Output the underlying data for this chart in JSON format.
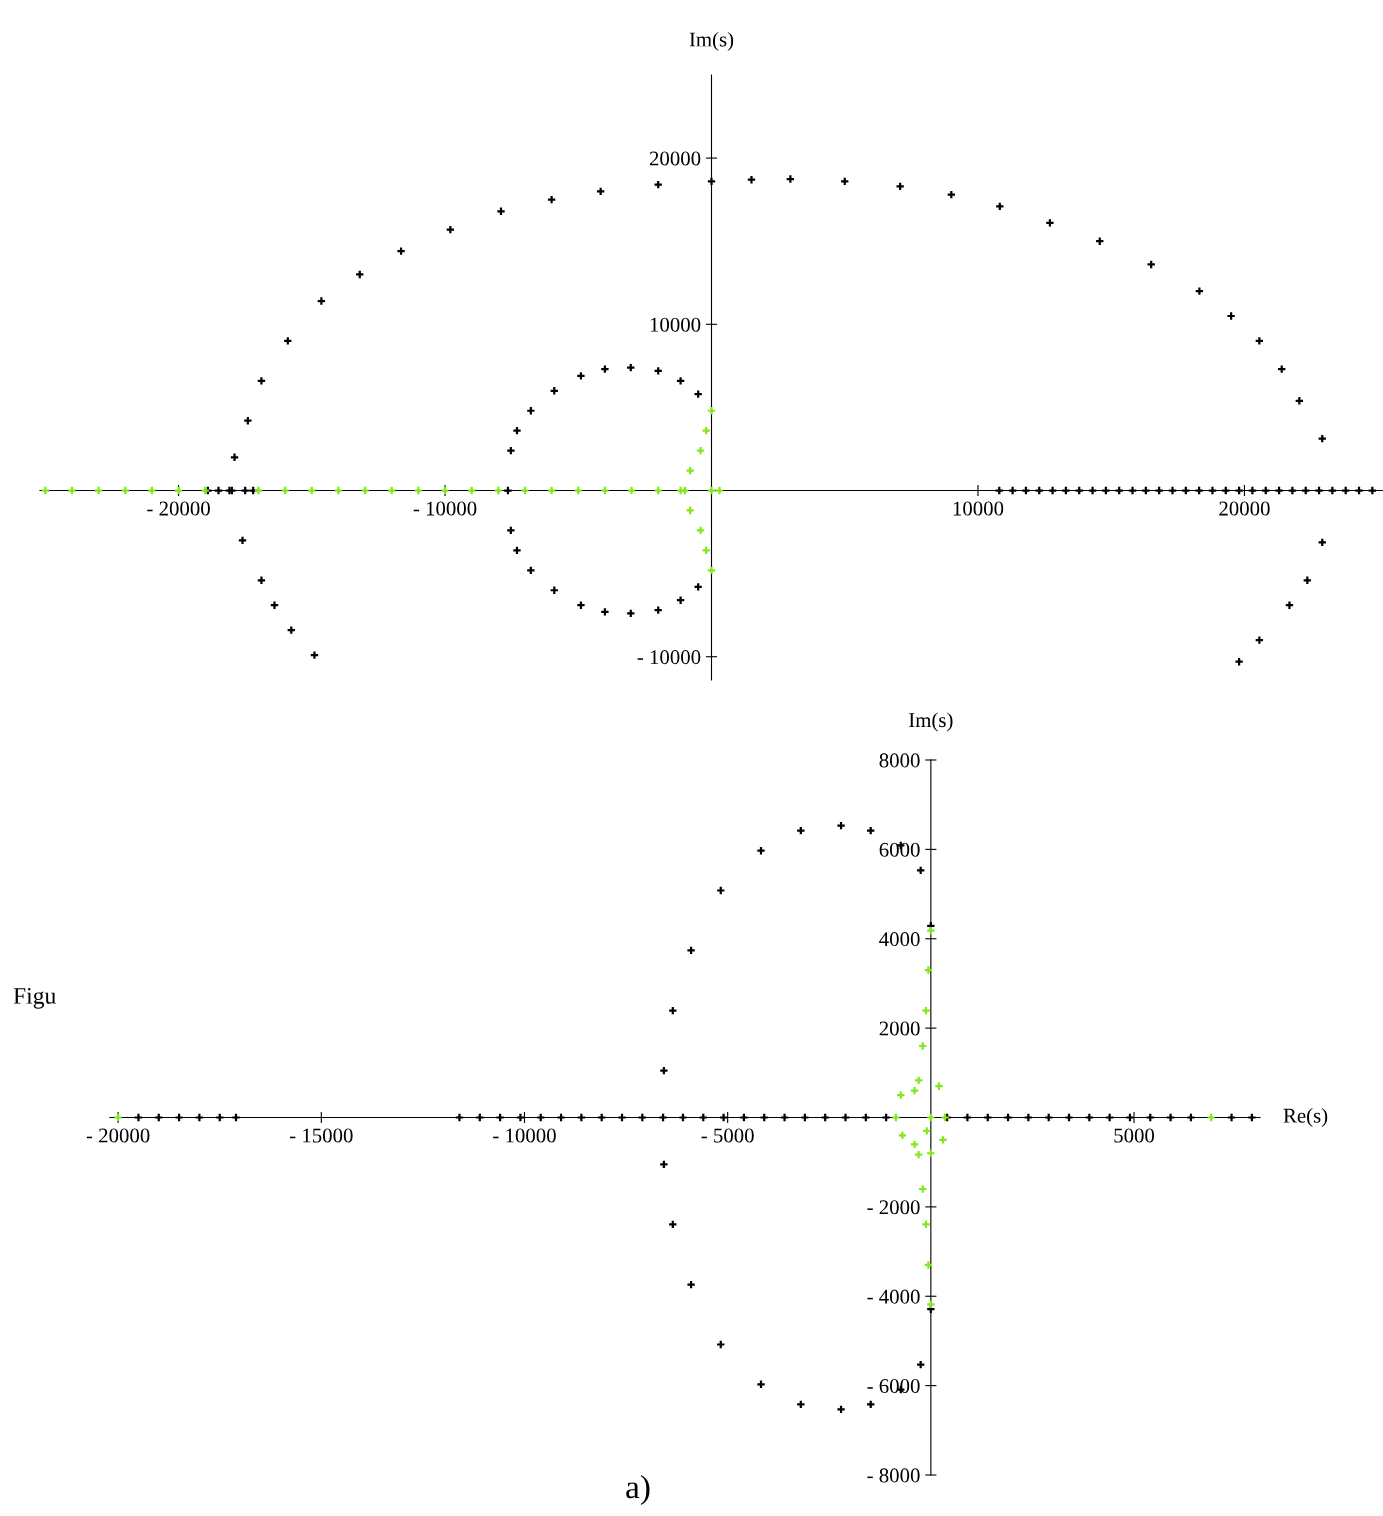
{
  "chart_data": [
    {
      "type": "scatter",
      "ylabel": "Im(s)",
      "xlim": [
        -25200,
        25200
      ],
      "ylim": [
        -11400,
        25000
      ],
      "xticks": [
        {
          "value": -20000,
          "label": "- 20000"
        },
        {
          "value": -10000,
          "label": "- 10000"
        },
        10000,
        20000
      ],
      "yticks": [
        20000,
        10000,
        {
          "value": -10000,
          "label": "- 10000"
        }
      ],
      "grid": false,
      "marker": "cross",
      "series": [
        {
          "color": "#000000",
          "x": [
            -14900,
            -15770,
            -16400,
            -16890,
            -17600,
            -18090,
            -17900,
            -17400,
            -16890,
            -15900,
            -14640,
            -13200,
            -11650,
            -9800,
            -7900,
            -6000,
            -4160,
            -2000,
            0,
            1500,
            2960,
            5000,
            7080,
            9000,
            10820,
            12700,
            14570,
            16500,
            18310,
            19500,
            20560,
            21400,
            22060,
            22920,
            22920,
            22360,
            21690,
            20560,
            19800
          ],
          "values": [
            -9900,
            -8400,
            -6900,
            -5400,
            -3000,
            0,
            2000,
            4200,
            6600,
            9000,
            11400,
            13000,
            14400,
            15700,
            16800,
            17500,
            18000,
            18400,
            18600,
            18700,
            18740,
            18600,
            18300,
            17800,
            17100,
            16100,
            15000,
            13600,
            12000,
            10500,
            9000,
            7300,
            5400,
            3120,
            -3120,
            -5400,
            -6900,
            -9000,
            -10300
          ]
        },
        {
          "color": "#000000",
          "x": [
            -500,
            -1160,
            -2000,
            -3030,
            -4000,
            -4900,
            -5900,
            -6780,
            -7300,
            -7530,
            -7640,
            -7530,
            -7300,
            -6780,
            -5900,
            -4900,
            -4000,
            -3030,
            -2000,
            -1160,
            -500
          ],
          "values": [
            5800,
            6600,
            7200,
            7390,
            7300,
            6900,
            6000,
            4800,
            3600,
            2400,
            0,
            -2400,
            -3600,
            -4800,
            -6000,
            -6900,
            -7300,
            -7390,
            -7200,
            -6600,
            -5800
          ]
        },
        {
          "color": "#000000",
          "x": [
            -18900,
            -18500,
            -18000,
            -17500,
            -17200,
            10800,
            11300,
            11800,
            12300,
            12800,
            13300,
            13800,
            14300,
            14800,
            15300,
            15800,
            16300,
            16800,
            17300,
            17800,
            18300,
            18800,
            19300,
            19800,
            20300,
            20800,
            21300,
            21800,
            22300,
            22800,
            23300,
            23800,
            24300,
            24800
          ],
          "values": [
            0,
            0,
            0,
            0,
            0,
            0,
            0,
            0,
            0,
            0,
            0,
            0,
            0,
            0,
            0,
            0,
            0,
            0,
            0,
            0,
            0,
            0,
            0,
            0,
            0,
            0,
            0,
            0,
            0,
            0,
            0,
            0,
            0,
            0
          ]
        },
        {
          "color": "#84e61c",
          "x": [
            -25000,
            -24000,
            -23000,
            -22000,
            -21000,
            -20000,
            -19000,
            -17000,
            -16000,
            -15000,
            -14000,
            -13000,
            -12000,
            -11000,
            -10000,
            -9000,
            -8000,
            -7000,
            -6000,
            -5000,
            -4000,
            -3000,
            -2000,
            -1000,
            0,
            300
          ],
          "values": [
            0,
            0,
            0,
            0,
            0,
            0,
            0,
            0,
            0,
            0,
            0,
            0,
            0,
            0,
            0,
            0,
            0,
            0,
            0,
            0,
            0,
            0,
            0,
            0,
            0,
            0
          ]
        },
        {
          "color": "#84e61c",
          "x": [
            0,
            -200,
            -410,
            -800,
            -1160,
            -800,
            -410,
            -200,
            0
          ],
          "values": [
            4800,
            3600,
            2400,
            1200,
            0,
            -1200,
            -2400,
            -3600,
            -4800
          ]
        }
      ]
    },
    {
      "type": "scatter",
      "ylabel": "Im(s)",
      "xlabel": "Re(s)",
      "xlim": [
        -20200,
        8100
      ],
      "ylim": [
        -8000,
        8000
      ],
      "xticks": [
        {
          "value": -20000,
          "label": "- 20000"
        },
        {
          "value": -15000,
          "label": "- 15000"
        },
        {
          "value": -10000,
          "label": "- 10000"
        },
        {
          "value": -5000,
          "label": "- 5000"
        },
        5000
      ],
      "yticks": [
        8000,
        6000,
        4000,
        2000,
        {
          "value": -2000,
          "label": "- 2000"
        },
        {
          "value": -4000,
          "label": "- 4000"
        },
        {
          "value": -6000,
          "label": "- 6000"
        },
        {
          "value": -8000,
          "label": "- 8000"
        }
      ],
      "grid": false,
      "marker": "cross",
      "annotations": [
        "Figu",
        "a)"
      ],
      "series": [
        {
          "color": "#000000",
          "x": [
            0,
            -250,
            -740,
            -1480,
            -2210,
            -3200,
            -4180,
            -5170,
            -5900,
            -6350,
            -6570,
            -6590,
            -6570,
            -6350,
            -5900,
            -5170,
            -4180,
            -3200,
            -2210,
            -1480,
            -740,
            -250,
            0
          ],
          "values": [
            4290,
            5530,
            6090,
            6420,
            6530,
            6420,
            5970,
            5080,
            3740,
            2390,
            1050,
            0,
            -1050,
            -2390,
            -3740,
            -5080,
            -5970,
            -6420,
            -6530,
            -6420,
            -6090,
            -5530,
            -4290
          ]
        },
        {
          "color": "#000000",
          "x": [
            -19500,
            -19000,
            -18500,
            -18000,
            -17500,
            -17100,
            -11600,
            -11100,
            -10600,
            -10100,
            -9600,
            -9100,
            -8600,
            -8100,
            -7600,
            -7100,
            -6100,
            -5600,
            -5100,
            -4600,
            -4100,
            -3600,
            -3100,
            -2600,
            -2100,
            -1600,
            -1100,
            400,
            900,
            1400,
            1900,
            2400,
            2900,
            3400,
            3900,
            4400,
            4900,
            5400,
            5900,
            6400,
            7400,
            7900
          ],
          "values": [
            0,
            0,
            0,
            0,
            0,
            0,
            0,
            0,
            0,
            0,
            0,
            0,
            0,
            0,
            0,
            0,
            0,
            0,
            0,
            0,
            0,
            0,
            0,
            0,
            0,
            0,
            0,
            0,
            0,
            0,
            0,
            0,
            0,
            0,
            0,
            0,
            0,
            0,
            0,
            0,
            0,
            0
          ]
        },
        {
          "color": "#84e61c",
          "x": [
            -20000,
            6900
          ],
          "values": [
            0,
            0
          ]
        },
        {
          "color": "#84e61c",
          "x": [
            0,
            -60,
            -120,
            -200,
            -300,
            -740,
            -860,
            -700,
            -400,
            -100,
            0,
            200,
            350,
            300,
            0,
            -400,
            -300,
            -200,
            -120,
            -60,
            0
          ],
          "values": [
            4180,
            3300,
            2390,
            1600,
            830,
            500,
            0,
            -400,
            -600,
            -300,
            0,
            700,
            0,
            -500,
            -800,
            600,
            -830,
            -1600,
            -2390,
            -3300,
            -4180
          ]
        }
      ]
    }
  ]
}
